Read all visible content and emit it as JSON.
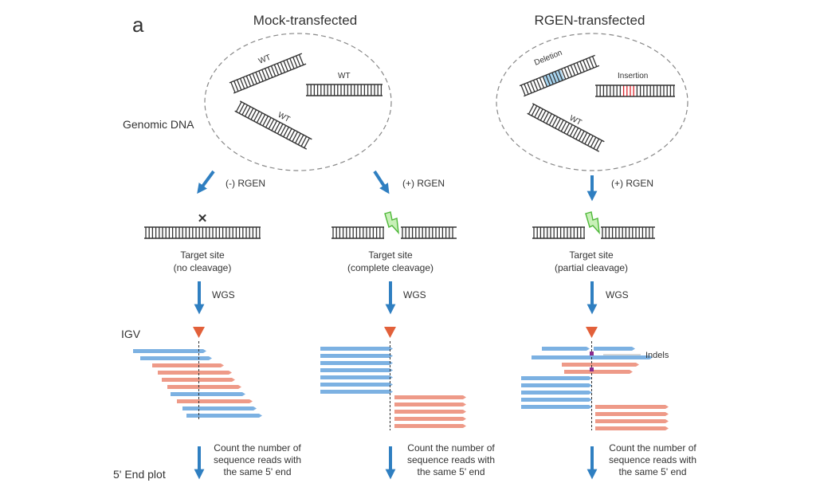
{
  "panel_label": "a",
  "columns": {
    "mock": {
      "title": "Mock-transfected"
    },
    "rgen": {
      "title": "RGEN-transfected"
    }
  },
  "genomic_dna_label": "Genomic DNA",
  "dna_labels": {
    "wt": "WT",
    "deletion": "Deletion",
    "insertion": "Insertion"
  },
  "arrows": {
    "minus_rgen": "(-) RGEN",
    "plus_rgen": "(+) RGEN",
    "wgs": "WGS"
  },
  "target_sites": {
    "no_cleavage": {
      "line1": "Target site",
      "line2": "(no cleavage)"
    },
    "complete": {
      "line1": "Target site",
      "line2": "(complete cleavage)"
    },
    "partial": {
      "line1": "Target site",
      "line2": "(partial cleavage)"
    }
  },
  "igv_label": "IGV",
  "indels_label": "Indels",
  "count_text": {
    "line1": "Count the number of",
    "line2": "sequence reads with",
    "line3": "the same 5' end"
  },
  "end_plot_label": "5' End plot",
  "colors": {
    "arrow": "#2f7fc1",
    "read_blue": "#7cb1e2",
    "read_red": "#ee9a88",
    "marker": "#e2603a",
    "insertion": "#d8232a",
    "deletion": "#a7d4ef",
    "bolt": "#6fd14a"
  }
}
